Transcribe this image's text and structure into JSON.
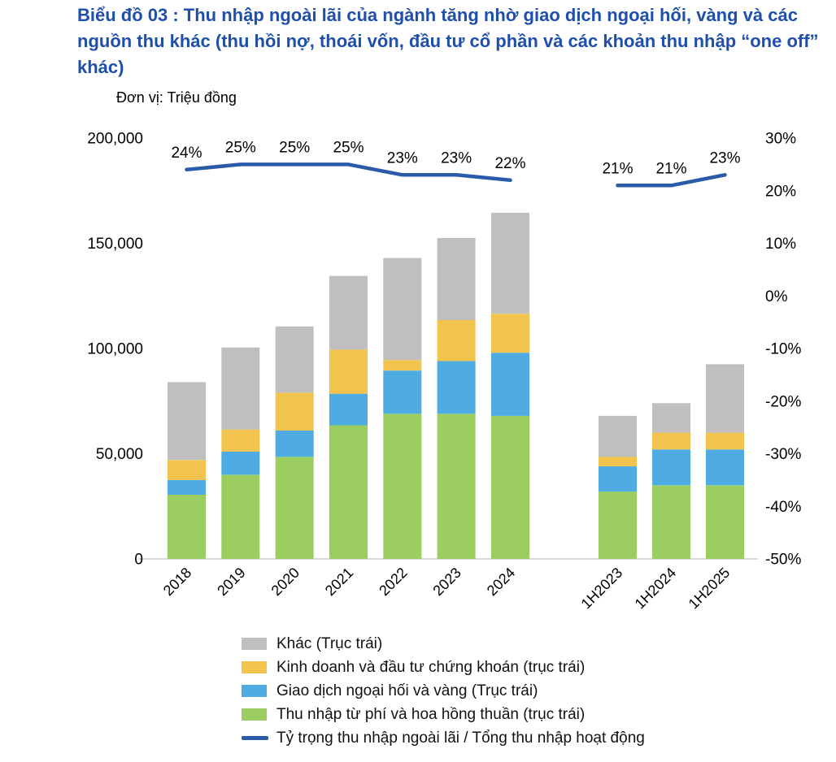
{
  "header": {
    "title": "Biểu đồ 03 : Thu nhập ngoài lãi của ngành tăng nhờ giao dịch ngoại hối, vàng và các nguồn thu khác (thu hồi nợ, thoái vốn, đầu tư cổ phần và các khoản thu nhập “one off” khác)",
    "unit_label": "Đơn vị: Triệu đồng"
  },
  "colors": {
    "title_blue": "#1F4FA8",
    "line_blue": "#2A5BA8",
    "bar_gray": "#BFBFBF",
    "bar_yellow": "#F2C44E",
    "bar_blue": "#4EACE3",
    "bar_green": "#9BCD61",
    "baseline_gray": "#D9D9D9",
    "text_black": "#000000"
  },
  "chart_data": {
    "type": "bar",
    "subtype": "stacked-bars-with-line-secondary-axis",
    "unit": "Triệu đồng",
    "title": "Thu nhập ngoài lãi của ngành",
    "grid": "off",
    "legend_position": "bottom",
    "categories": [
      "2018",
      "2019",
      "2020",
      "2021",
      "2022",
      "2023",
      "2024",
      "1H2023",
      "1H2024",
      "1H2025"
    ],
    "group_gap_after_index": 6,
    "series": [
      {
        "name": "Thu nhập từ phí và hoa hồng thuần (trục trái)",
        "type": "bar",
        "axis": "left",
        "color_key": "bar_green",
        "values": [
          30500,
          40000,
          48500,
          63500,
          69000,
          69000,
          68000,
          32000,
          35000,
          35000
        ]
      },
      {
        "name": "Giao dịch ngoại hối và vàng (Trục trái)",
        "type": "bar",
        "axis": "left",
        "color_key": "bar_blue",
        "values": [
          7000,
          11000,
          12500,
          15000,
          20500,
          25000,
          30000,
          12000,
          17000,
          17000
        ]
      },
      {
        "name": "Kinh doanh và đầu tư chứng khoán (trục trái)",
        "type": "bar",
        "axis": "left",
        "color_key": "bar_yellow",
        "values": [
          9500,
          10500,
          18000,
          21000,
          5000,
          19500,
          18500,
          4500,
          8000,
          8000
        ]
      },
      {
        "name": "Khác (Trục trái)",
        "type": "bar",
        "axis": "left",
        "color_key": "bar_gray",
        "values": [
          37000,
          39000,
          31500,
          35000,
          48500,
          39000,
          48000,
          19500,
          14000,
          32500
        ]
      },
      {
        "name": "Tỷ trọng thu nhập ngoài lãi / Tổng thu nhập hoạt động",
        "type": "line",
        "axis": "right",
        "color_key": "line_blue",
        "values": [
          24,
          25,
          25,
          25,
          23,
          23,
          22,
          21,
          21,
          23
        ],
        "labels": [
          "24%",
          "25%",
          "25%",
          "25%",
          "23%",
          "23%",
          "22%",
          "21%",
          "21%",
          "23%"
        ]
      }
    ],
    "left_axis": {
      "min": 0,
      "max": 200000,
      "ticks": [
        {
          "value": 0,
          "label": "0"
        },
        {
          "value": 50000,
          "label": "50,000"
        },
        {
          "value": 100000,
          "label": "100,000"
        },
        {
          "value": 150000,
          "label": "150,000"
        },
        {
          "value": 200000,
          "label": "200,000"
        }
      ]
    },
    "right_axis": {
      "min": -50,
      "max": 30,
      "ticks": [
        {
          "value": 30,
          "label": "30%"
        },
        {
          "value": 20,
          "label": "20%"
        },
        {
          "value": 10,
          "label": "10%"
        },
        {
          "value": 0,
          "label": "0%"
        },
        {
          "value": -10,
          "label": "-10%"
        },
        {
          "value": -20,
          "label": "-20%"
        },
        {
          "value": -30,
          "label": "-30%"
        },
        {
          "value": -40,
          "label": "-40%"
        },
        {
          "value": -50,
          "label": "-50%"
        }
      ]
    },
    "legend": [
      {
        "swatch": "square",
        "color_key": "bar_gray",
        "label": "Khác (Trục trái)"
      },
      {
        "swatch": "square",
        "color_key": "bar_yellow",
        "label": "Kinh doanh và đầu tư chứng khoán (trục trái)"
      },
      {
        "swatch": "square",
        "color_key": "bar_blue",
        "label": "Giao dịch ngoại hối và vàng (Trục trái)"
      },
      {
        "swatch": "square",
        "color_key": "bar_green",
        "label": "Thu nhập từ phí và hoa hồng thuần (trục trái)"
      },
      {
        "swatch": "line",
        "color_key": "line_blue",
        "label": "Tỷ trọng thu nhập ngoài lãi / Tổng thu nhập hoạt động"
      }
    ]
  }
}
